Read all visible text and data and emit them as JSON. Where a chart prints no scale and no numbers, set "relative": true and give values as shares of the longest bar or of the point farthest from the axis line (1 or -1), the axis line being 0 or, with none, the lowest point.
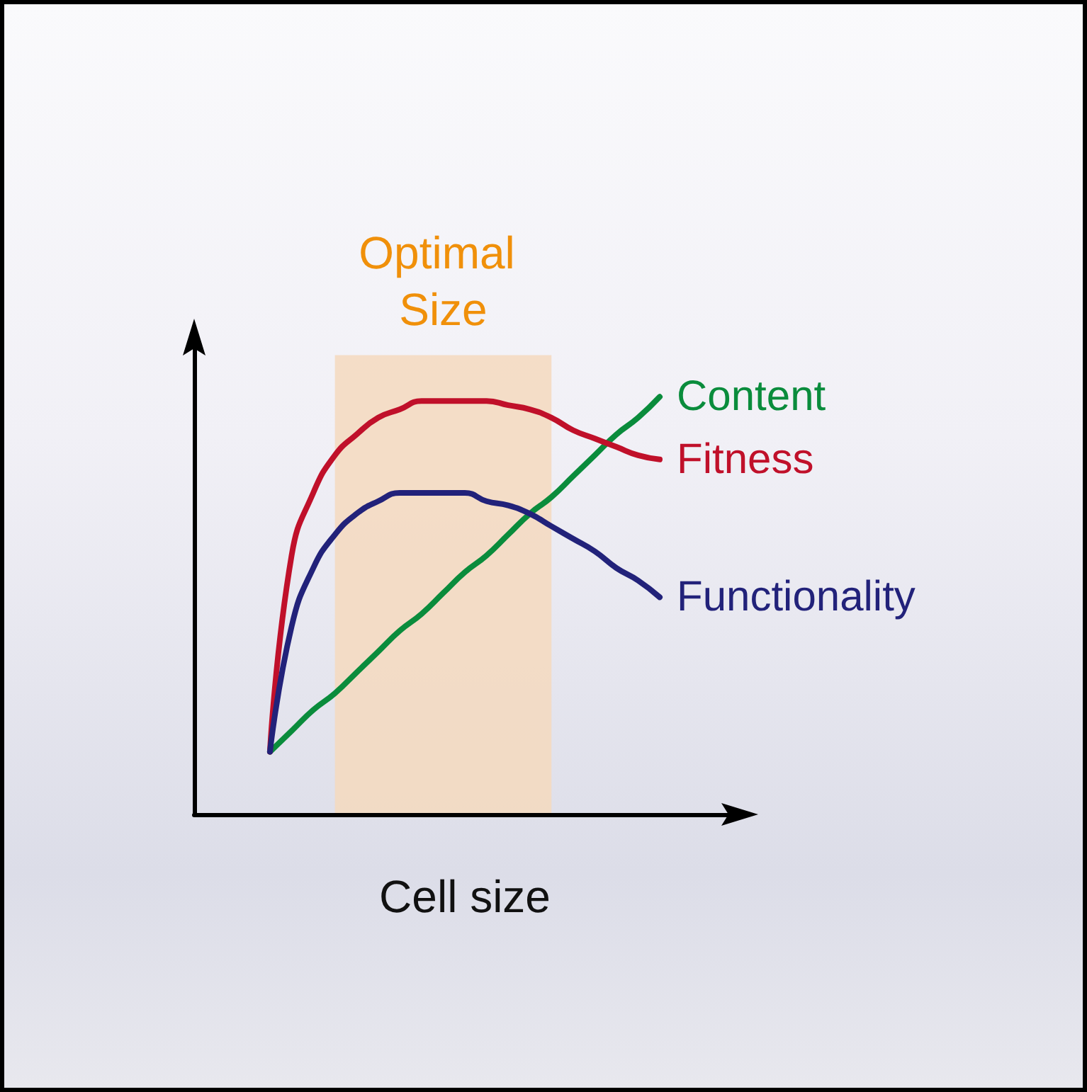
{
  "chart_data": {
    "type": "line",
    "relative": true,
    "xlabel": "Cell size",
    "legend": false,
    "grid": false,
    "marker": "none",
    "annotations": [
      "Optimal Size"
    ],
    "categories": [
      null,
      null,
      null,
      null,
      null,
      null,
      null,
      null,
      null,
      null,
      null,
      null,
      null,
      null,
      null,
      null,
      null,
      null,
      null,
      null,
      null,
      null,
      null,
      null,
      null
    ],
    "series": [
      {
        "name": "Content",
        "color": "#0a8c3c",
        "values": [
          null,
          null,
          null,
          0.15,
          0.2,
          0.25,
          0.29,
          0.34,
          0.39,
          0.44,
          0.48,
          0.53,
          0.58,
          0.62,
          0.67,
          0.72,
          0.76,
          0.81,
          0.86,
          0.91,
          0.95,
          1.0,
          null,
          null,
          null
        ]
      },
      {
        "name": "Fitness",
        "color": "#c0102a",
        "values": [
          null,
          null,
          null,
          0.15,
          0.62,
          0.77,
          0.86,
          0.91,
          0.95,
          0.97,
          0.99,
          0.99,
          0.99,
          0.99,
          0.98,
          0.97,
          0.95,
          0.92,
          0.9,
          0.88,
          0.86,
          0.85,
          null,
          null,
          null
        ]
      },
      {
        "name": "Functionality",
        "color": "#22227a",
        "values": [
          null,
          null,
          null,
          0.15,
          0.45,
          0.59,
          0.67,
          0.72,
          0.75,
          0.77,
          0.77,
          0.77,
          0.77,
          0.75,
          0.74,
          0.72,
          0.69,
          0.66,
          0.63,
          0.59,
          0.56,
          0.52,
          null,
          null,
          null
        ]
      }
    ]
  }
}
